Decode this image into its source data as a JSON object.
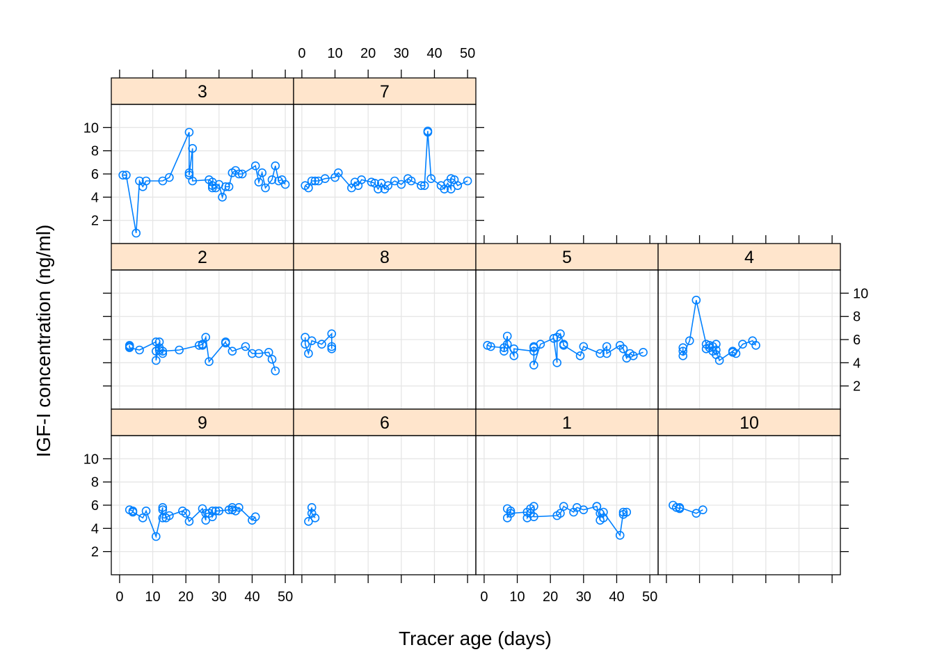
{
  "chart_data": {
    "type": "scatter",
    "style": "lattice panels, points joined by lines",
    "xlabel": "Tracer age (days)",
    "ylabel": "IGF-I concentration (ng/ml)",
    "xlim": [
      -2.5,
      52.5
    ],
    "ylim": [
      0,
      12
    ],
    "x_ticks": [
      0,
      10,
      20,
      30,
      40,
      50
    ],
    "y_ticks": [
      2,
      4,
      6,
      8,
      10
    ],
    "layout": "4 columns x 3 rows; panels absent in top row columns 3-4",
    "panels": [
      {
        "label": "3",
        "row": 0,
        "col": 0,
        "x": [
          1,
          2,
          5,
          6,
          7,
          8,
          13,
          15,
          21,
          21,
          21,
          22,
          22,
          27,
          28,
          28,
          28,
          29,
          30,
          31,
          32,
          33,
          34,
          35,
          36,
          37,
          41,
          42,
          43,
          44,
          46,
          47,
          48,
          49,
          50
        ],
        "y": [
          5.9,
          5.9,
          0.9,
          5.4,
          4.9,
          5.4,
          5.4,
          5.7,
          9.6,
          6.1,
          5.9,
          8.2,
          5.4,
          5.5,
          5.3,
          5.0,
          4.8,
          4.8,
          5.1,
          4.0,
          4.9,
          4.9,
          6.1,
          6.3,
          6.0,
          6.0,
          6.7,
          5.3,
          6.1,
          4.8,
          5.5,
          6.7,
          5.4,
          5.5,
          5.1
        ]
      },
      {
        "label": "7",
        "row": 0,
        "col": 1,
        "x": [
          1,
          2,
          3,
          4,
          5,
          7,
          10,
          11,
          15,
          16,
          17,
          18,
          21,
          22,
          23,
          24,
          25,
          26,
          28,
          30,
          32,
          33,
          36,
          37,
          38,
          38,
          39,
          42,
          43,
          44,
          45,
          45,
          46,
          47,
          50
        ],
        "y": [
          5.0,
          4.8,
          5.4,
          5.4,
          5.4,
          5.6,
          5.7,
          6.1,
          4.8,
          5.3,
          5.0,
          5.5,
          5.3,
          5.2,
          4.7,
          5.2,
          4.7,
          5.0,
          5.4,
          5.1,
          5.6,
          5.4,
          5.0,
          5.0,
          9.7,
          9.6,
          5.6,
          5.0,
          4.7,
          5.2,
          4.7,
          5.6,
          5.5,
          5.0,
          5.4
        ]
      },
      {
        "label": "2",
        "row": 1,
        "col": 0,
        "x": [
          3,
          3,
          3,
          6,
          11,
          11,
          11,
          12,
          12,
          12,
          13,
          13,
          18,
          24,
          25,
          25,
          26,
          27,
          32,
          32,
          34,
          38,
          40,
          42,
          45,
          46,
          47
        ],
        "y": [
          5.5,
          5.4,
          5.3,
          5.1,
          5.8,
          5.0,
          4.2,
          5.8,
          5.3,
          5.1,
          4.8,
          5.0,
          5.1,
          5.5,
          5.6,
          5.5,
          6.2,
          4.1,
          5.8,
          5.7,
          5.0,
          5.4,
          4.8,
          4.8,
          4.9,
          4.3,
          3.3
        ]
      },
      {
        "label": "8",
        "row": 1,
        "col": 1,
        "x": [
          1,
          1,
          2,
          3,
          6,
          9,
          9,
          9
        ],
        "y": [
          6.2,
          5.6,
          4.8,
          5.9,
          5.6,
          6.5,
          5.4,
          5.2
        ]
      },
      {
        "label": "5",
        "row": 1,
        "col": 2,
        "x": [
          1,
          2,
          6,
          6,
          7,
          7,
          9,
          9,
          15,
          15,
          15,
          15,
          17,
          21,
          22,
          22,
          23,
          24,
          24,
          29,
          30,
          35,
          37,
          37,
          41,
          42,
          43,
          44,
          45,
          48
        ],
        "y": [
          5.5,
          5.4,
          5.3,
          5.0,
          6.3,
          5.6,
          4.6,
          5.2,
          5.0,
          5.3,
          5.4,
          3.8,
          5.6,
          6.1,
          4.0,
          6.2,
          6.5,
          5.6,
          5.5,
          4.6,
          5.4,
          4.8,
          5.4,
          4.8,
          5.5,
          5.2,
          4.4,
          4.8,
          4.6,
          4.9
        ]
      },
      {
        "label": "4",
        "row": 1,
        "col": 3,
        "x": [
          5,
          5,
          5,
          7,
          9,
          12,
          12,
          13,
          13,
          14,
          14,
          15,
          15,
          15,
          16,
          20,
          20,
          21,
          23,
          26,
          27
        ],
        "y": [
          5.3,
          5.0,
          4.6,
          5.9,
          9.4,
          5.6,
          5.2,
          5.5,
          5.3,
          5.4,
          5.0,
          4.7,
          5.6,
          5.1,
          4.2,
          5.0,
          4.9,
          4.8,
          5.6,
          5.9,
          5.5
        ]
      },
      {
        "label": "9",
        "row": 2,
        "col": 0,
        "x": [
          3,
          4,
          4,
          7,
          8,
          11,
          13,
          13,
          13,
          14,
          15,
          19,
          20,
          21,
          25,
          26,
          26,
          27,
          28,
          28,
          29,
          30,
          33,
          34,
          34,
          35,
          36,
          40,
          41
        ],
        "y": [
          5.6,
          5.5,
          5.4,
          4.9,
          5.5,
          3.3,
          5.8,
          5.6,
          4.9,
          4.9,
          5.1,
          5.5,
          5.3,
          4.6,
          5.7,
          4.7,
          5.3,
          5.3,
          5.5,
          5.0,
          5.5,
          5.5,
          5.6,
          5.8,
          5.6,
          5.5,
          5.8,
          4.7,
          5.0
        ]
      },
      {
        "label": "6",
        "row": 2,
        "col": 1,
        "x": [
          2,
          3,
          3,
          4
        ],
        "y": [
          4.6,
          5.8,
          5.3,
          4.9
        ]
      },
      {
        "label": "1",
        "row": 2,
        "col": 2,
        "x": [
          7,
          7,
          8,
          8,
          13,
          13,
          14,
          14,
          15,
          15,
          22,
          23,
          24,
          27,
          28,
          30,
          34,
          34,
          35,
          35,
          36,
          36,
          41,
          42,
          42,
          43
        ],
        "y": [
          5.7,
          4.9,
          5.5,
          5.3,
          5.4,
          4.9,
          5.3,
          5.7,
          5.9,
          5.0,
          5.1,
          5.3,
          5.9,
          5.4,
          5.8,
          5.6,
          5.9,
          5.9,
          4.7,
          5.3,
          4.9,
          5.4,
          3.4,
          5.4,
          5.2,
          5.4
        ]
      },
      {
        "label": "10",
        "row": 2,
        "col": 3,
        "x": [
          2,
          3,
          4,
          4,
          9,
          11
        ],
        "y": [
          6.0,
          5.8,
          5.7,
          5.8,
          5.3,
          5.6
        ]
      }
    ]
  },
  "colors": {
    "series": "#0080ff",
    "strip": "#ffe5cc",
    "grid": "#e6e6e6"
  }
}
